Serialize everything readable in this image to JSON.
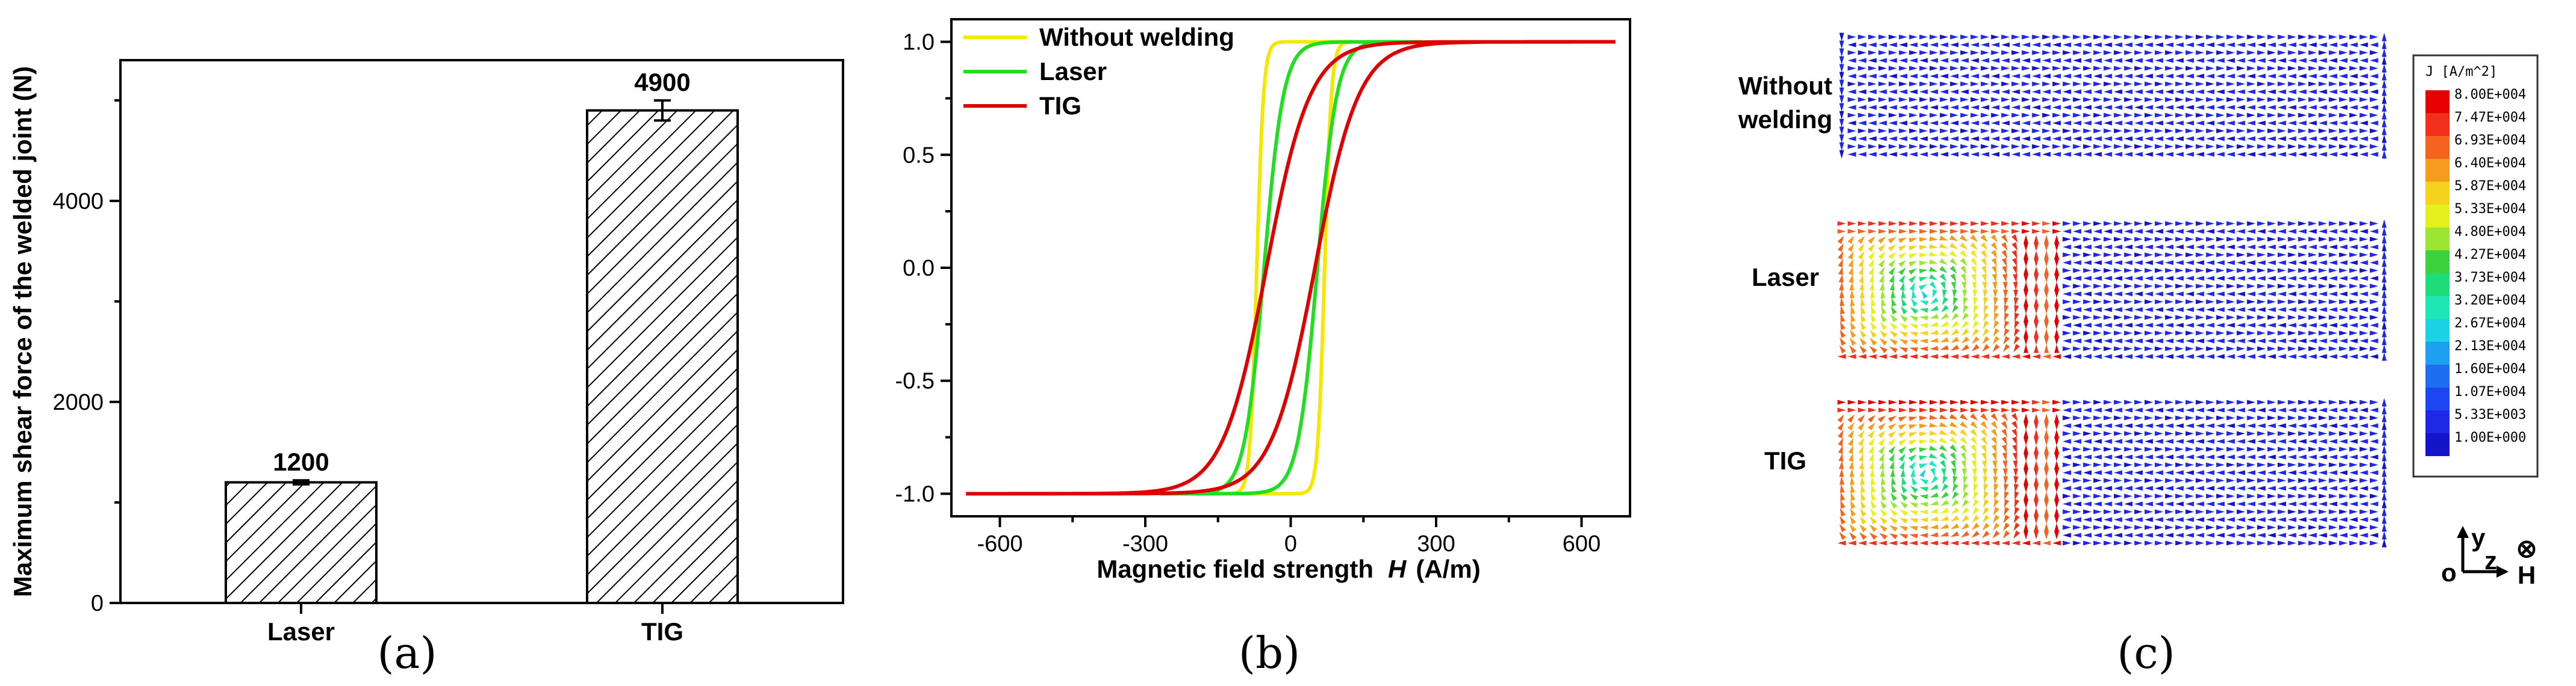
{
  "chart_data": [
    {
      "type": "bar",
      "panel": "a",
      "categories": [
        "Laser",
        "TIG"
      ],
      "values": [
        1200,
        4900
      ],
      "errors": [
        20,
        100
      ],
      "value_labels": [
        "1200",
        "4900"
      ],
      "ylabel": "Maximum shear force of the welded joint (N)",
      "xlabel": "",
      "ylim": [
        0,
        5400
      ],
      "yticks": [
        0,
        2000,
        4000
      ],
      "ytick_labels": [
        "0",
        "2000",
        "4000"
      ],
      "caption": "(a)"
    },
    {
      "type": "line",
      "panel": "b",
      "xlabel": "Magnetic field strength",
      "xlabel_var": "H",
      "xlabel_unit": "(A/m)",
      "xlim": [
        -700,
        700
      ],
      "ylim": [
        -1.1,
        1.1
      ],
      "xticks": [
        -600,
        -300,
        0,
        300,
        600
      ],
      "xtick_labels": [
        "-600",
        "-300",
        "0",
        "300",
        "600"
      ],
      "yticks": [
        -1.0,
        -0.5,
        0.0,
        0.5,
        1.0
      ],
      "ytick_labels": [
        "-1.0",
        "-0.5",
        "0.0",
        "0.5",
        "1.0"
      ],
      "series": [
        {
          "name": "Without welding",
          "color": "#f5e800",
          "Hmax": 135,
          "Hc": 70,
          "a": 14
        },
        {
          "name": "Laser",
          "color": "#22dd22",
          "Hmax": 270,
          "Hc": 55,
          "a": 40
        },
        {
          "name": "TIG",
          "color": "#dd0000",
          "Hmax": 670,
          "Hc": 50,
          "a": 90
        }
      ],
      "caption": "(b)"
    },
    {
      "type": "heatmap",
      "panel": "c",
      "rows": [
        {
          "label_lines": [
            "Without",
            "welding"
          ],
          "hot_zone": 0.0
        },
        {
          "label_lines": [
            "Laser"
          ],
          "hot_zone": 1.0
        },
        {
          "label_lines": [
            "TIG"
          ],
          "hot_zone": 1.0
        }
      ],
      "colorbar": {
        "title": "J [A/m^2]",
        "labels": [
          "8.00E+004",
          "7.47E+004",
          "6.93E+004",
          "6.40E+004",
          "5.87E+004",
          "5.33E+004",
          "4.80E+004",
          "4.27E+004",
          "3.73E+004",
          "3.20E+004",
          "2.67E+004",
          "2.13E+004",
          "1.60E+004",
          "1.07E+004",
          "5.33E+003",
          "1.00E+000"
        ],
        "colors": [
          "#e60000",
          "#f0301c",
          "#f5641e",
          "#f59b1e",
          "#f5d21e",
          "#e6f01e",
          "#9be632",
          "#3cd23c",
          "#1edc78",
          "#1ee6b4",
          "#1ed2e6",
          "#1ea0f0",
          "#1e6ef0",
          "#1e46f0",
          "#1e28e6",
          "#1414c8"
        ]
      },
      "axes_legend": {
        "y": "y",
        "z": "z",
        "origin": "o",
        "field": "H",
        "field_symbol": "⊗"
      },
      "caption": "(c)"
    }
  ]
}
